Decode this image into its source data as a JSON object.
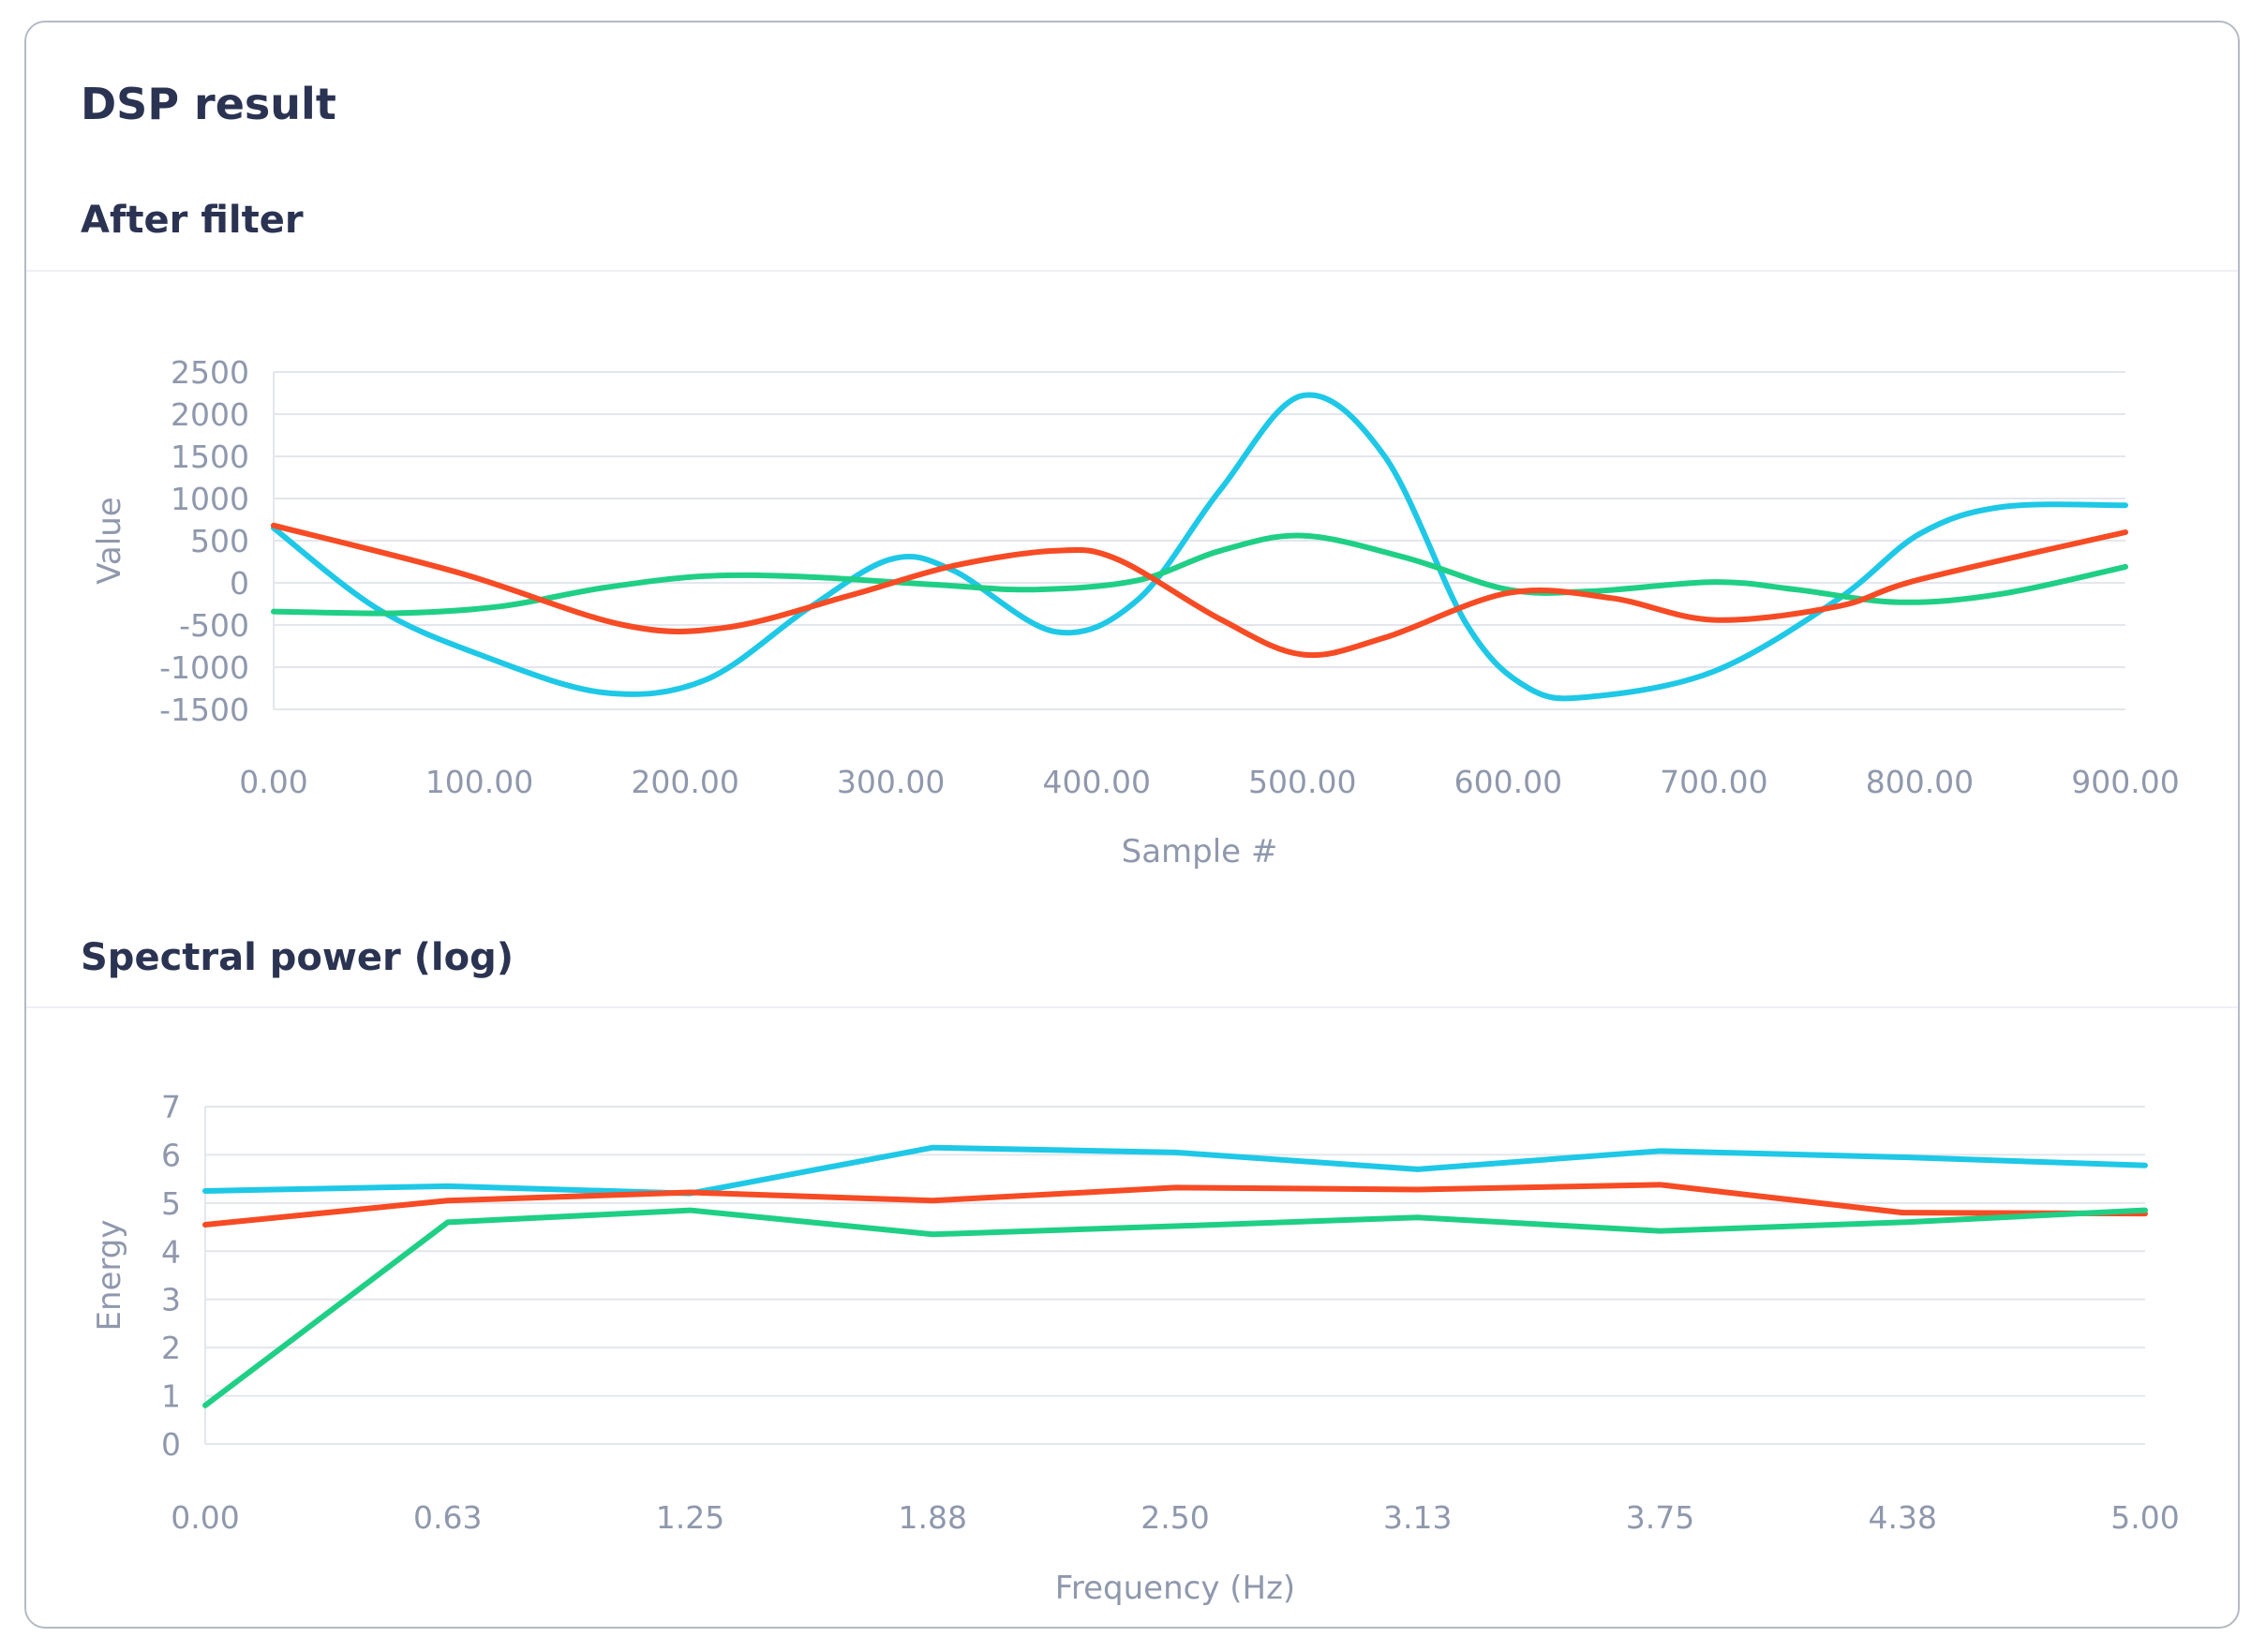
{
  "card": {
    "title": "DSP result"
  },
  "colors": {
    "cyan": "#1ec8e6",
    "red": "#f64b24",
    "green": "#1fcf85",
    "grid": "#e3e6ec",
    "text": "#8f98ac",
    "title": "#2b3352"
  },
  "chart_data": [
    {
      "type": "line",
      "title": "After filter",
      "xlabel": "Sample #",
      "ylabel": "Value",
      "xlim": [
        0,
        900
      ],
      "ylim": [
        -1500,
        2500
      ],
      "x_ticks": [
        "0.00",
        "100.00",
        "200.00",
        "300.00",
        "400.00",
        "500.00",
        "600.00",
        "700.00",
        "800.00",
        "900.00"
      ],
      "y_ticks": [
        "2500",
        "2000",
        "1500",
        "1000",
        "500",
        "0",
        "-500",
        "-1000",
        "-1500"
      ],
      "grid": true,
      "smooth": true,
      "series": [
        {
          "color": "#1ec8e6",
          "points": [
            [
              0,
              650
            ],
            [
              50,
              -300
            ],
            [
              100,
              -850
            ],
            [
              160,
              -1300
            ],
            [
              210,
              -1150
            ],
            [
              260,
              -300
            ],
            [
              300,
              280
            ],
            [
              330,
              150
            ],
            [
              380,
              -580
            ],
            [
              420,
              -200
            ],
            [
              460,
              1100
            ],
            [
              500,
              2220
            ],
            [
              540,
              1500
            ],
            [
              580,
              -500
            ],
            [
              610,
              -1250
            ],
            [
              640,
              -1350
            ],
            [
              700,
              -1050
            ],
            [
              760,
              -200
            ],
            [
              800,
              580
            ],
            [
              840,
              900
            ],
            [
              900,
              920
            ]
          ]
        },
        {
          "color": "#1fcf85",
          "points": [
            [
              0,
              -340
            ],
            [
              60,
              -360
            ],
            [
              110,
              -280
            ],
            [
              160,
              -60
            ],
            [
              210,
              80
            ],
            [
              260,
              70
            ],
            [
              320,
              -20
            ],
            [
              370,
              -80
            ],
            [
              420,
              30
            ],
            [
              460,
              380
            ],
            [
              500,
              560
            ],
            [
              550,
              300
            ],
            [
              600,
              -80
            ],
            [
              640,
              -100
            ],
            [
              700,
              10
            ],
            [
              740,
              -80
            ],
            [
              790,
              -230
            ],
            [
              840,
              -130
            ],
            [
              900,
              190
            ]
          ]
        },
        {
          "color": "#f64b24",
          "points": [
            [
              0,
              680
            ],
            [
              90,
              120
            ],
            [
              170,
              -500
            ],
            [
              220,
              -530
            ],
            [
              280,
              -150
            ],
            [
              330,
              200
            ],
            [
              380,
              380
            ],
            [
              410,
              280
            ],
            [
              460,
              -430
            ],
            [
              500,
              -850
            ],
            [
              540,
              -650
            ],
            [
              600,
              -120
            ],
            [
              650,
              -180
            ],
            [
              700,
              -440
            ],
            [
              760,
              -280
            ],
            [
              800,
              40
            ],
            [
              900,
              600
            ]
          ]
        }
      ]
    },
    {
      "type": "line",
      "title": "Spectral power (log)",
      "xlabel": "Frequency (Hz)",
      "ylabel": "Energy",
      "xlim": [
        0,
        5
      ],
      "ylim": [
        0,
        7
      ],
      "x_ticks": [
        "0.00",
        "0.63",
        "1.25",
        "1.88",
        "2.50",
        "3.13",
        "3.75",
        "4.38",
        "5.00"
      ],
      "y_ticks": [
        "7",
        "6",
        "5",
        "4",
        "3",
        "2",
        "1",
        "0"
      ],
      "grid": true,
      "smooth": false,
      "series": [
        {
          "color": "#1ec8e6",
          "points": [
            [
              0,
              5.25
            ],
            [
              0.625,
              5.35
            ],
            [
              1.25,
              5.2
            ],
            [
              1.875,
              6.15
            ],
            [
              2.5,
              6.05
            ],
            [
              3.125,
              5.7
            ],
            [
              3.75,
              6.08
            ],
            [
              4.375,
              5.95
            ],
            [
              5,
              5.78
            ]
          ]
        },
        {
          "color": "#f64b24",
          "points": [
            [
              0,
              4.55
            ],
            [
              0.625,
              5.05
            ],
            [
              1.25,
              5.22
            ],
            [
              1.875,
              5.05
            ],
            [
              2.5,
              5.32
            ],
            [
              3.125,
              5.28
            ],
            [
              3.75,
              5.38
            ],
            [
              4.375,
              4.8
            ],
            [
              5,
              4.78
            ]
          ]
        },
        {
          "color": "#1fcf85",
          "points": [
            [
              0,
              0.8
            ],
            [
              0.625,
              4.6
            ],
            [
              1.25,
              4.85
            ],
            [
              1.875,
              4.35
            ],
            [
              2.5,
              4.52
            ],
            [
              3.125,
              4.7
            ],
            [
              3.75,
              4.42
            ],
            [
              4.375,
              4.6
            ],
            [
              5,
              4.85
            ]
          ]
        }
      ]
    }
  ]
}
